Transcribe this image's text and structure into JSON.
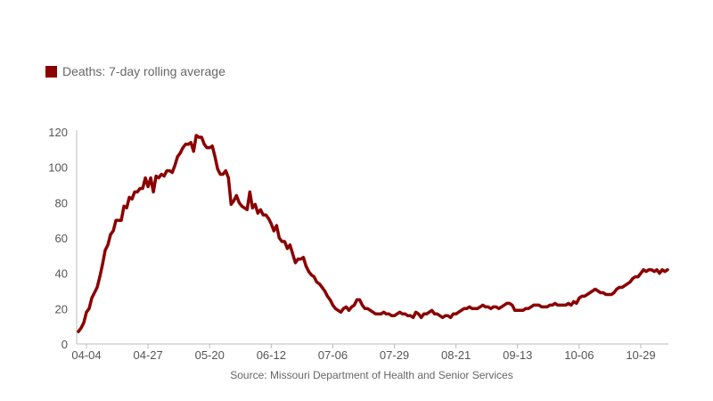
{
  "legend": {
    "label": "Deaths: 7-day rolling average",
    "color": "#8b0000"
  },
  "source": "Source: Missouri Department of Health and Senior Services",
  "chart_data": {
    "type": "line",
    "title": "",
    "xlabel": "",
    "ylabel": "",
    "ylim": [
      0,
      120
    ],
    "yticks": [
      0,
      20,
      40,
      60,
      80,
      100,
      120
    ],
    "xticks": [
      "04-04",
      "04-27",
      "05-20",
      "06-12",
      "07-06",
      "07-29",
      "08-21",
      "09-13",
      "10-06",
      "10-29"
    ],
    "grid": false,
    "legend_position": "top-left",
    "series": [
      {
        "name": "Deaths: 7-day rolling average",
        "color": "#8b0000",
        "values": [
          7,
          9,
          12,
          18,
          20,
          26,
          29,
          32,
          38,
          45,
          53,
          56,
          62,
          64,
          70,
          70,
          70,
          78,
          77,
          83,
          82,
          86,
          86,
          88,
          88,
          94,
          89,
          94,
          86,
          95,
          94,
          96,
          95,
          98,
          98,
          97,
          101,
          106,
          108,
          111,
          113,
          113,
          114,
          109,
          118,
          117,
          117,
          113,
          111,
          111,
          112,
          106,
          99,
          96,
          96,
          98,
          94,
          79,
          81,
          84,
          80,
          78,
          77,
          76,
          86,
          77,
          79,
          74,
          76,
          73,
          73,
          71,
          68,
          64,
          67,
          60,
          58,
          58,
          54,
          56,
          51,
          46,
          48,
          48,
          49,
          44,
          41,
          39,
          38,
          35,
          34,
          32,
          30,
          27,
          25,
          22,
          20,
          19,
          18,
          20,
          21,
          19,
          21,
          22,
          25,
          25,
          22,
          20,
          20,
          19,
          18,
          17,
          17,
          17,
          18,
          17,
          17,
          16,
          16,
          17,
          18,
          17,
          17,
          16,
          16,
          15,
          18,
          17,
          15,
          17,
          17,
          18,
          19,
          17,
          17,
          16,
          15,
          16,
          16,
          15,
          17,
          17,
          18,
          19,
          20,
          20,
          21,
          20,
          20,
          20,
          21,
          22,
          21,
          21,
          20,
          21,
          21,
          20,
          21,
          22,
          23,
          23,
          22,
          19,
          19,
          19,
          19,
          20,
          20,
          21,
          22,
          22,
          22,
          21,
          21,
          21,
          22,
          22,
          23,
          22,
          22,
          22,
          22,
          23,
          22,
          24,
          23,
          26,
          27,
          27,
          28,
          29,
          30,
          31,
          30,
          29,
          29,
          28,
          28,
          28,
          29,
          31,
          32,
          32,
          33,
          34,
          35,
          37,
          38,
          38,
          40,
          42,
          41,
          42,
          42,
          41,
          42,
          40,
          42,
          41,
          42
        ]
      }
    ]
  }
}
